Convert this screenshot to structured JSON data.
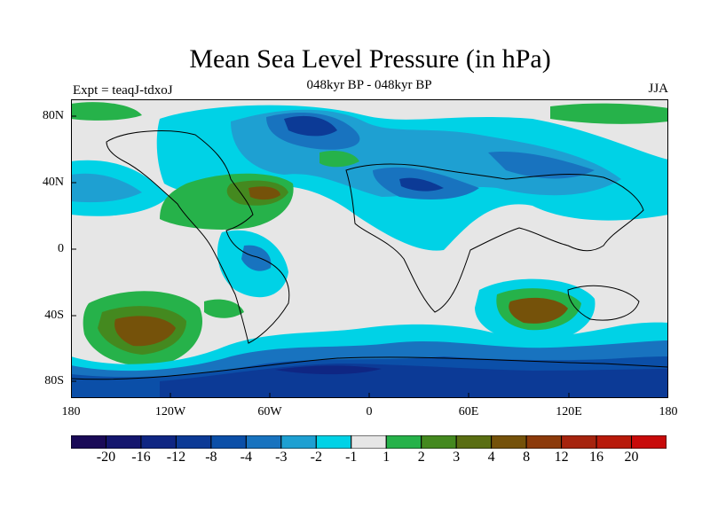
{
  "title": "Mean Sea Level Pressure (in hPa)",
  "subtitle": "048kyr BP - 048kyr BP",
  "experiment_label": "Expt = teaqJ-tdxoJ",
  "season": "JJA",
  "lat_labels": [
    "80N",
    "40N",
    "0",
    "40S",
    "80S"
  ],
  "lon_labels": [
    "180",
    "120W",
    "60W",
    "0",
    "60E",
    "120E",
    "180"
  ],
  "colorbar": {
    "labels": [
      "-20",
      "-16",
      "-12",
      "-8",
      "-4",
      "-3",
      "-2",
      "-1",
      "1",
      "2",
      "3",
      "4",
      "8",
      "12",
      "16",
      "20"
    ],
    "colors": [
      "#1a0a57",
      "#14166e",
      "#0f2683",
      "#0c3a96",
      "#0b4fa8",
      "#1873bf",
      "#1ea0d2",
      "#00d2e6",
      "#e6e6e6",
      "#26b24a",
      "#44891f",
      "#5a6e12",
      "#75520a",
      "#8c3a0a",
      "#a6240e",
      "#c80a0a"
    ]
  },
  "chart_data": {
    "type": "heatmap",
    "title": "Mean Sea Level Pressure (in hPa)",
    "subtitle": "048kyr BP - 048kyr BP",
    "xlabel": "",
    "ylabel": "",
    "x_ticks": [
      "180",
      "120W",
      "60W",
      "0",
      "60E",
      "120E",
      "180"
    ],
    "y_ticks": [
      "80N",
      "40N",
      "0",
      "40S",
      "80S"
    ],
    "xlim": [
      -180,
      180
    ],
    "ylim": [
      -90,
      90
    ],
    "levels": [
      -20,
      -16,
      -12,
      -8,
      -4,
      -3,
      -2,
      -1,
      1,
      2,
      3,
      4,
      8,
      12,
      16,
      20
    ],
    "features": [
      {
        "type": "high",
        "lon": -135,
        "lat": -50,
        "value": 8
      },
      {
        "type": "high",
        "lon": 100,
        "lat": -40,
        "value": 8
      },
      {
        "type": "high",
        "lon": -60,
        "lat": 35,
        "value": 3
      },
      {
        "type": "low",
        "lon": -35,
        "lat": 68,
        "value": -8
      },
      {
        "type": "low",
        "lon": 30,
        "lat": 45,
        "value": -4
      },
      {
        "type": "low",
        "lon": 0,
        "lat": -70,
        "value": -12
      }
    ]
  }
}
